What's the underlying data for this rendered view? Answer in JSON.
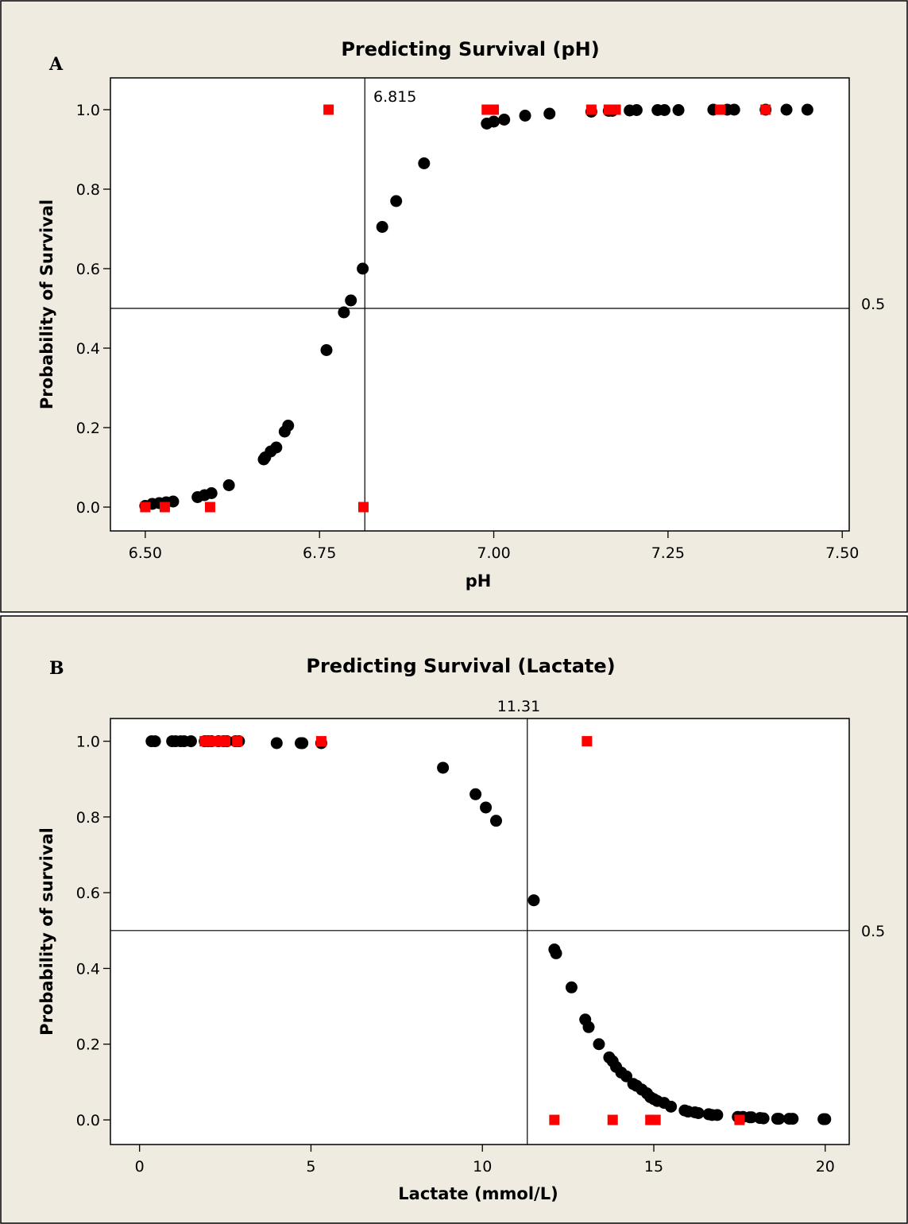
{
  "chart_data": [
    {
      "type": "scatter",
      "panel_label": "A",
      "title": "Predicting Survival (pH)",
      "xlabel": "pH",
      "ylabel": "Probability of Survival",
      "xlim": [
        6.45,
        7.51
      ],
      "ylim": [
        -0.06,
        1.08
      ],
      "x_ticks": [
        "6.50",
        "6.75",
        "7.00",
        "7.25",
        "7.50"
      ],
      "x_tick_values": [
        6.5,
        6.75,
        7.0,
        7.25,
        7.5
      ],
      "y_ticks": [
        "0.0",
        "0.2",
        "0.4",
        "0.6",
        "0.8",
        "1.0"
      ],
      "y_tick_values": [
        0.0,
        0.2,
        0.4,
        0.6,
        0.8,
        1.0
      ],
      "ref_vertical": {
        "value": 6.815,
        "label": "6.815"
      },
      "ref_horizontal": {
        "value": 0.5,
        "label": "0.5"
      },
      "grid": false,
      "colors": {
        "predicted": "#000000",
        "observed": "#ff0000",
        "frame_bg": "#f0ebe0"
      },
      "series": [
        {
          "marker": "circle",
          "color": "#000000",
          "points": [
            [
              6.5,
              0.003
            ],
            [
              6.51,
              0.008
            ],
            [
              6.52,
              0.01
            ],
            [
              6.53,
              0.012
            ],
            [
              6.54,
              0.014
            ],
            [
              6.575,
              0.025
            ],
            [
              6.585,
              0.03
            ],
            [
              6.595,
              0.035
            ],
            [
              6.62,
              0.055
            ],
            [
              6.67,
              0.12
            ],
            [
              6.672,
              0.125
            ],
            [
              6.68,
              0.14
            ],
            [
              6.688,
              0.15
            ],
            [
              6.7,
              0.19
            ],
            [
              6.705,
              0.205
            ],
            [
              6.76,
              0.395
            ],
            [
              6.785,
              0.49
            ],
            [
              6.795,
              0.52
            ],
            [
              6.812,
              0.6
            ],
            [
              6.84,
              0.705
            ],
            [
              6.86,
              0.77
            ],
            [
              6.9,
              0.865
            ],
            [
              6.99,
              0.965
            ],
            [
              7.0,
              0.97
            ],
            [
              7.015,
              0.975
            ],
            [
              7.045,
              0.985
            ],
            [
              7.08,
              0.99
            ],
            [
              7.14,
              0.995
            ],
            [
              7.165,
              0.997
            ],
            [
              7.17,
              0.997
            ],
            [
              7.195,
              0.998
            ],
            [
              7.205,
              0.999
            ],
            [
              7.235,
              0.999
            ],
            [
              7.245,
              0.999
            ],
            [
              7.265,
              0.999
            ],
            [
              7.315,
              1.0
            ],
            [
              7.335,
              1.0
            ],
            [
              7.345,
              1.0
            ],
            [
              7.39,
              1.0
            ],
            [
              7.42,
              1.0
            ],
            [
              7.45,
              1.0
            ]
          ]
        },
        {
          "marker": "square",
          "color": "#ff0000",
          "points": [
            [
              6.5,
              0.0
            ],
            [
              6.528,
              0.0
            ],
            [
              6.593,
              0.0
            ],
            [
              6.763,
              1.0
            ],
            [
              6.813,
              0.0
            ],
            [
              6.99,
              1.0
            ],
            [
              7.0,
              1.0
            ],
            [
              7.14,
              1.0
            ],
            [
              7.165,
              1.0
            ],
            [
              7.175,
              1.0
            ],
            [
              7.325,
              1.0
            ],
            [
              7.39,
              1.0
            ]
          ]
        }
      ]
    },
    {
      "type": "scatter",
      "panel_label": "B",
      "title": "Predicting Survival (Lactate)",
      "xlabel": "Lactate (mmol/L)",
      "ylabel": "Probability of survival",
      "xlim": [
        -0.85,
        20.7
      ],
      "ylim": [
        -0.065,
        1.06
      ],
      "x_ticks": [
        "0",
        "5",
        "10",
        "15",
        "20"
      ],
      "x_tick_values": [
        0,
        5,
        10,
        15,
        20
      ],
      "y_ticks": [
        "0.0",
        "0.2",
        "0.4",
        "0.6",
        "0.8",
        "1.0"
      ],
      "y_tick_values": [
        0.0,
        0.2,
        0.4,
        0.6,
        0.8,
        1.0
      ],
      "ref_vertical": {
        "value": 11.31,
        "label": "11.31"
      },
      "ref_horizontal": {
        "value": 0.5,
        "label": "0.5"
      },
      "grid": false,
      "colors": {
        "predicted": "#000000",
        "observed": "#ff0000",
        "frame_bg": "#f0ebe0"
      },
      "series": [
        {
          "marker": "circle",
          "color": "#000000",
          "points": [
            [
              0.35,
              1.0
            ],
            [
              0.45,
              1.0
            ],
            [
              0.95,
              1.0
            ],
            [
              1.05,
              1.0
            ],
            [
              1.2,
              1.0
            ],
            [
              1.3,
              1.0
            ],
            [
              1.5,
              1.0
            ],
            [
              1.9,
              1.0
            ],
            [
              2.0,
              1.0
            ],
            [
              2.1,
              1.0
            ],
            [
              2.3,
              1.0
            ],
            [
              2.45,
              1.0
            ],
            [
              2.55,
              1.0
            ],
            [
              2.8,
              1.0
            ],
            [
              2.9,
              1.0
            ],
            [
              4.0,
              0.995
            ],
            [
              4.7,
              0.995
            ],
            [
              4.75,
              0.995
            ],
            [
              5.3,
              0.995
            ],
            [
              8.85,
              0.93
            ],
            [
              9.8,
              0.86
            ],
            [
              10.1,
              0.825
            ],
            [
              10.4,
              0.79
            ],
            [
              11.5,
              0.58
            ],
            [
              12.1,
              0.45
            ],
            [
              12.15,
              0.44
            ],
            [
              12.6,
              0.35
            ],
            [
              13.0,
              0.265
            ],
            [
              13.1,
              0.245
            ],
            [
              13.4,
              0.2
            ],
            [
              13.7,
              0.165
            ],
            [
              13.8,
              0.155
            ],
            [
              13.9,
              0.14
            ],
            [
              14.05,
              0.125
            ],
            [
              14.2,
              0.115
            ],
            [
              14.4,
              0.095
            ],
            [
              14.5,
              0.09
            ],
            [
              14.65,
              0.08
            ],
            [
              14.8,
              0.07
            ],
            [
              14.9,
              0.06
            ],
            [
              15.0,
              0.055
            ],
            [
              15.1,
              0.05
            ],
            [
              15.3,
              0.045
            ],
            [
              15.5,
              0.035
            ],
            [
              15.9,
              0.025
            ],
            [
              16.0,
              0.022
            ],
            [
              16.2,
              0.02
            ],
            [
              16.3,
              0.018
            ],
            [
              16.6,
              0.015
            ],
            [
              16.7,
              0.013
            ],
            [
              16.85,
              0.013
            ],
            [
              17.45,
              0.008
            ],
            [
              17.6,
              0.008
            ],
            [
              17.8,
              0.007
            ],
            [
              17.85,
              0.007
            ],
            [
              18.1,
              0.005
            ],
            [
              18.2,
              0.004
            ],
            [
              18.6,
              0.003
            ],
            [
              18.65,
              0.003
            ],
            [
              18.95,
              0.003
            ],
            [
              19.05,
              0.003
            ],
            [
              19.95,
              0.002
            ],
            [
              20.0,
              0.002
            ]
          ]
        },
        {
          "marker": "square",
          "color": "#ff0000",
          "points": [
            [
              1.9,
              1.0
            ],
            [
              2.05,
              1.0
            ],
            [
              2.2,
              1.0
            ],
            [
              2.35,
              1.0
            ],
            [
              2.5,
              1.0
            ],
            [
              2.85,
              1.0
            ],
            [
              5.3,
              1.0
            ],
            [
              13.05,
              1.0
            ],
            [
              12.1,
              0.0
            ],
            [
              13.8,
              0.0
            ],
            [
              14.9,
              0.0
            ],
            [
              15.05,
              0.0
            ],
            [
              17.5,
              0.0
            ]
          ]
        }
      ]
    }
  ]
}
